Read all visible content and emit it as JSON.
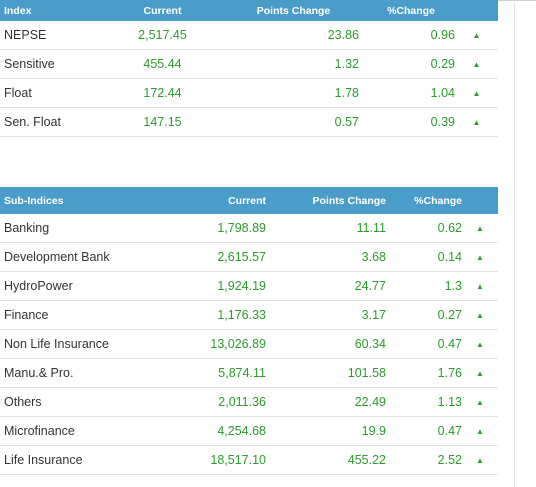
{
  "index_table": {
    "headers": [
      "Index",
      "Current",
      "Points Change",
      "%Change"
    ],
    "rows": [
      {
        "name": "NEPSE",
        "current": "2,517.45",
        "change": "23.86",
        "pct": "0.96",
        "arrow": "▲"
      },
      {
        "name": "Sensitive",
        "current": "455.44",
        "change": "1.32",
        "pct": "0.29",
        "arrow": "▲"
      },
      {
        "name": "Float",
        "current": "172.44",
        "change": "1.78",
        "pct": "1.04",
        "arrow": "▲"
      },
      {
        "name": "Sen. Float",
        "current": "147.15",
        "change": "0.57",
        "pct": "0.39",
        "arrow": "▲"
      }
    ]
  },
  "sub_table": {
    "headers": [
      "Sub-Indices",
      "Current",
      "Points Change",
      "%Change"
    ],
    "rows": [
      {
        "name": "Banking",
        "current": "1,798.89",
        "change": "11.11",
        "pct": "0.62",
        "arrow": "▲"
      },
      {
        "name": "Development Bank",
        "current": "2,615.57",
        "change": "3.68",
        "pct": "0.14",
        "arrow": "▲"
      },
      {
        "name": "HydroPower",
        "current": "1,924.19",
        "change": "24.77",
        "pct": "1.3",
        "arrow": "▲"
      },
      {
        "name": "Finance",
        "current": "1,176.33",
        "change": "3.17",
        "pct": "0.27",
        "arrow": "▲"
      },
      {
        "name": "Non Life Insurance",
        "current": "13,026.89",
        "change": "60.34",
        "pct": "0.47",
        "arrow": "▲"
      },
      {
        "name": "Manu.& Pro.",
        "current": "5,874.11",
        "change": "101.58",
        "pct": "1.76",
        "arrow": "▲"
      },
      {
        "name": "Others",
        "current": "2,011.36",
        "change": "22.49",
        "pct": "1.13",
        "arrow": "▲"
      },
      {
        "name": "Microfinance",
        "current": "4,254.68",
        "change": "19.9",
        "pct": "0.47",
        "arrow": "▲"
      },
      {
        "name": "Life Insurance",
        "current": "18,517.10",
        "change": "455.22",
        "pct": "2.52",
        "arrow": "▲"
      }
    ]
  },
  "colors": {
    "header_bg": "#4a9cc9",
    "positive": "#2e9a2e"
  }
}
